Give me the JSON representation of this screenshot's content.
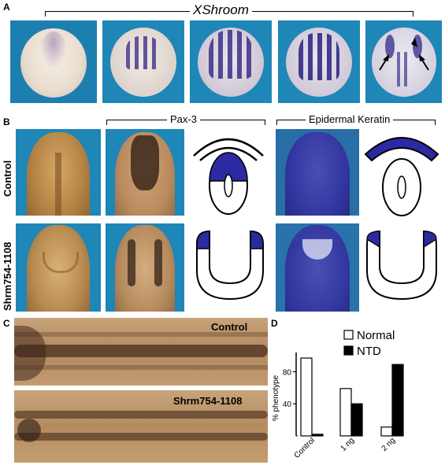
{
  "panel_a": {
    "letter": "A",
    "gene_label": "XShroom"
  },
  "panel_b": {
    "letter": "B",
    "marker_1": "Pax-3",
    "marker_2": "Epidermal Keratin",
    "row_1": "Control",
    "row_2": "Shrm754-1108"
  },
  "panel_c": {
    "letter": "C",
    "label_top": "Control",
    "label_bottom": "Shrm754-1108"
  },
  "panel_d": {
    "letter": "D",
    "ylabel": "% phenotype"
  },
  "colors": {
    "normal": "#ffffff",
    "ntd": "#000000",
    "stain": "#2a2a9a",
    "photo_bg": "#1f86b8"
  },
  "chart_data": {
    "type": "bar",
    "categories": [
      "Control",
      "1 ng",
      "2 ng"
    ],
    "series": [
      {
        "name": "Normal",
        "values": [
          97,
          59,
          11
        ]
      },
      {
        "name": "NTD",
        "values": [
          2,
          40,
          89
        ]
      }
    ],
    "ylabel": "% phenotype",
    "yticks": [
      "40",
      "80"
    ],
    "ylim": [
      0,
      100
    ],
    "legend": "top-right"
  }
}
